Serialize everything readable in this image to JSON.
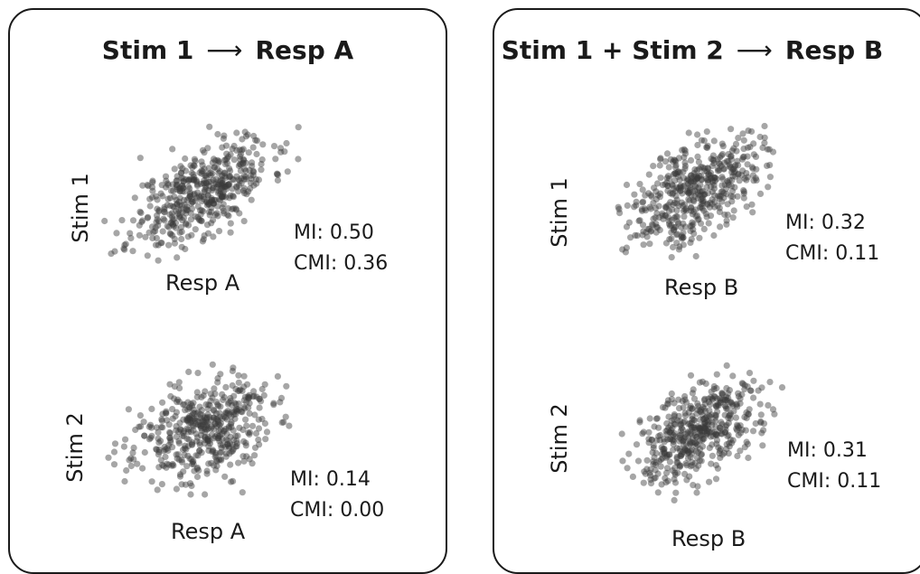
{
  "panels": [
    {
      "title_left": "Stim 1",
      "arrow": "⟶",
      "title_right": "Resp A",
      "plots": [
        {
          "ylabel": "Stim 1",
          "xlabel": "Resp A",
          "mi": "MI: 0.50",
          "cmi": "CMI: 0.36",
          "seed": 11,
          "corr": 0.62
        },
        {
          "ylabel": "Stim 2",
          "xlabel": "Resp A",
          "mi": "MI: 0.14",
          "cmi": "CMI: 0.00",
          "seed": 23,
          "corr": 0.28
        }
      ]
    },
    {
      "title_left": "Stim 1 + Stim 2",
      "arrow": "⟶",
      "title_right": "Resp B",
      "plots": [
        {
          "ylabel": "Stim 1",
          "xlabel": "Resp B",
          "mi": "MI: 0.32",
          "cmi": "CMI: 0.11",
          "seed": 37,
          "corr": 0.52
        },
        {
          "ylabel": "Stim 2",
          "xlabel": "Resp B",
          "mi": "MI: 0.31",
          "cmi": "CMI: 0.11",
          "seed": 51,
          "corr": 0.52
        }
      ]
    }
  ],
  "colors": {
    "point": "#3a3a3a",
    "border": "#1a1a1a"
  }
}
